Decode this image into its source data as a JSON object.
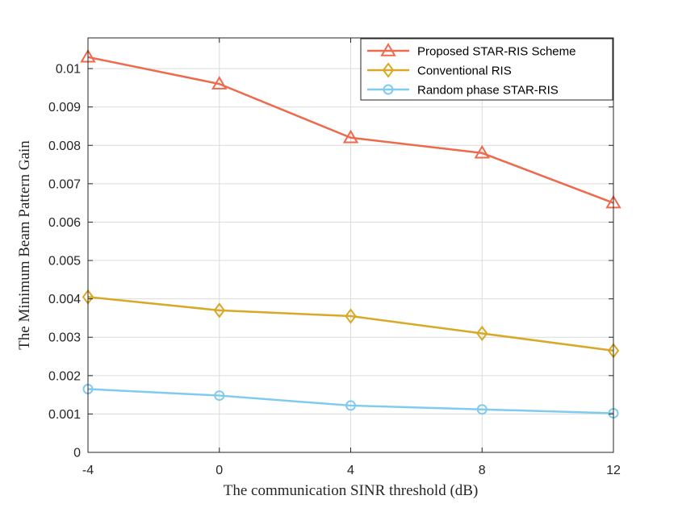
{
  "chart_data": {
    "type": "line",
    "title": "",
    "xlabel": "The communication SINR threshold (dB)",
    "ylabel": "The Minimum Beam Pattern Gain",
    "x": [
      -4,
      0,
      4,
      8,
      12
    ],
    "xlim": [
      -4,
      12
    ],
    "ylim": [
      0,
      0.0108
    ],
    "xticks": [
      "-4",
      "0",
      "4",
      "8",
      "12"
    ],
    "yticks": [
      "0",
      "0.001",
      "0.002",
      "0.003",
      "0.004",
      "0.005",
      "0.006",
      "0.007",
      "0.008",
      "0.009",
      "0.01"
    ],
    "grid": true,
    "legend_position": "top-right",
    "series": [
      {
        "name": "Proposed STAR-RIS Scheme",
        "values": [
          0.0103,
          0.0096,
          0.0082,
          0.0078,
          0.0065
        ],
        "marker": "triangle",
        "color": "#EE6A4D"
      },
      {
        "name": "Conventional RIS",
        "values": [
          0.00405,
          0.0037,
          0.00355,
          0.0031,
          0.00265
        ],
        "marker": "diamond",
        "color": "#D8A826"
      },
      {
        "name": "Random phase STAR-RIS",
        "values": [
          0.00165,
          0.00148,
          0.00122,
          0.00112,
          0.00102
        ],
        "marker": "circle",
        "color": "#7FCBEF"
      }
    ]
  }
}
